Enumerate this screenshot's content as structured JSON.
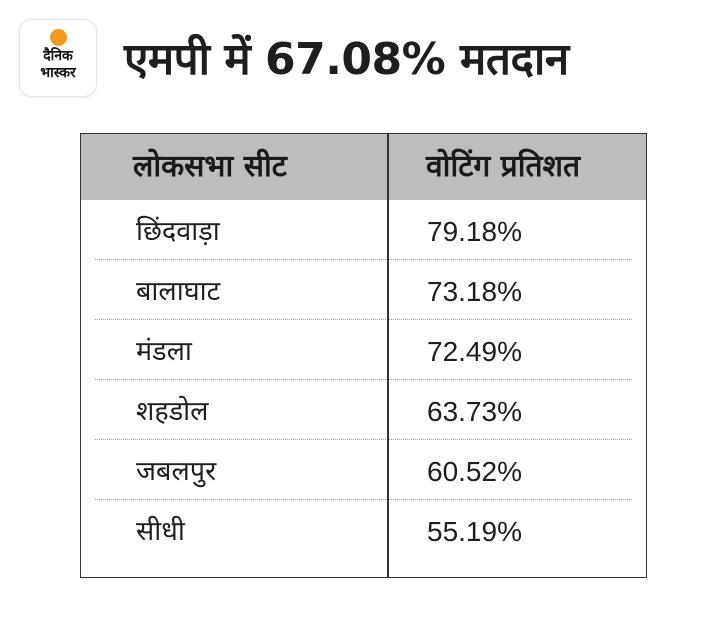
{
  "logo": {
    "line1": "दैनिक",
    "line2": "भास्कर",
    "sun_color": "#f39a1e"
  },
  "headline": "एमपी में 67.08% मतदान",
  "table": {
    "columns": [
      "लोकसभा सीट",
      "वोटिंग प्रतिशत"
    ],
    "header_bg": "#bdbdbd",
    "rows": [
      {
        "seat": "छिंदवाड़ा",
        "percent": "79.18%"
      },
      {
        "seat": "बालाघाट",
        "percent": "73.18%"
      },
      {
        "seat": "मंडला",
        "percent": "72.49%"
      },
      {
        "seat": "शहडोल",
        "percent": "63.73%"
      },
      {
        "seat": "जबलपुर",
        "percent": "60.52%"
      },
      {
        "seat": "सीधी",
        "percent": "55.19%"
      }
    ]
  }
}
